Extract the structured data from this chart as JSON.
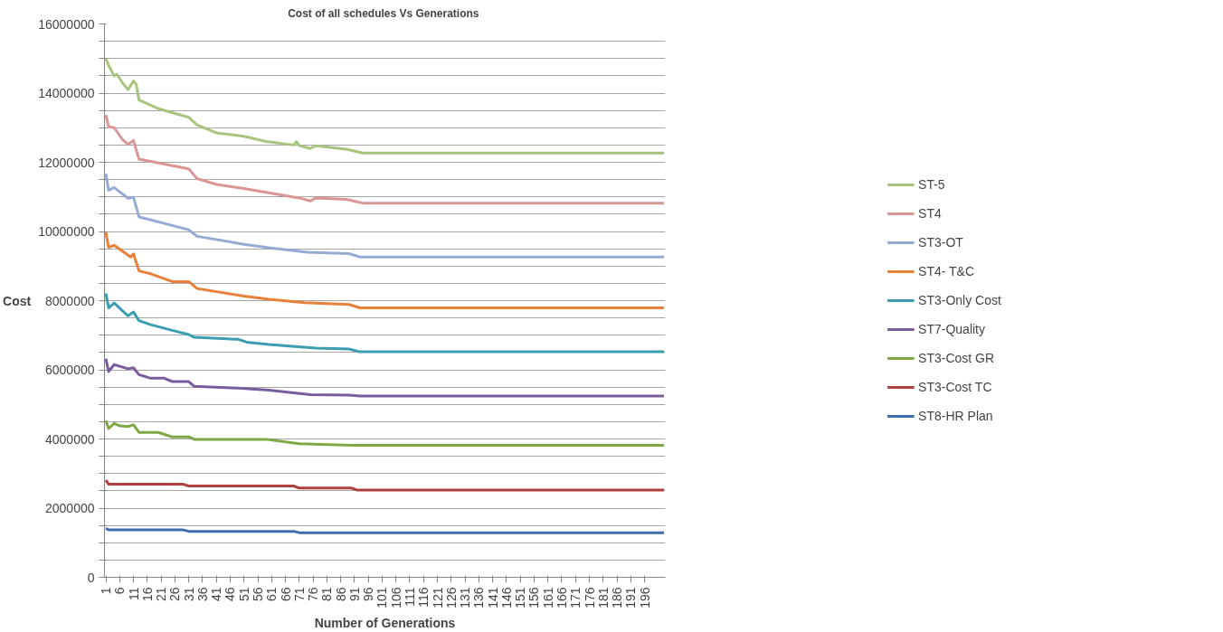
{
  "chart_data": {
    "type": "line",
    "title": "Cost of all schedules  Vs Generations",
    "xlabel": "Number of Generations",
    "ylabel": "Cost",
    "xlim": [
      0.5,
      203.5
    ],
    "xticks": [
      1,
      6,
      11,
      16,
      21,
      26,
      31,
      36,
      41,
      46,
      51,
      56,
      61,
      66,
      71,
      76,
      81,
      86,
      91,
      96,
      101,
      106,
      111,
      116,
      121,
      126,
      131,
      136,
      141,
      146,
      151,
      156,
      161,
      166,
      171,
      176,
      181,
      186,
      191,
      196
    ],
    "ylim": [
      0,
      16000000
    ],
    "yticks": [
      0,
      {
        "value": 500000,
        "label": null
      },
      {
        "value": 1000000,
        "label": null
      },
      {
        "value": 1500000,
        "label": null
      },
      2000000,
      {
        "value": 2500000,
        "label": null
      },
      {
        "value": 3000000,
        "label": null
      },
      {
        "value": 3500000,
        "label": null
      },
      4000000,
      {
        "value": 4500000,
        "label": null
      },
      {
        "value": 5000000,
        "label": null
      },
      {
        "value": 5500000,
        "label": null
      },
      6000000,
      {
        "value": 6500000,
        "label": null
      },
      {
        "value": 7000000,
        "label": null
      },
      {
        "value": 7500000,
        "label": null
      },
      8000000,
      {
        "value": 8500000,
        "label": null
      },
      {
        "value": 9000000,
        "label": null
      },
      {
        "value": 9500000,
        "label": null
      },
      10000000,
      {
        "value": 10500000,
        "label": null
      },
      {
        "value": 11000000,
        "label": null
      },
      {
        "value": 11500000,
        "label": null
      },
      12000000,
      {
        "value": 12500000,
        "label": null
      },
      {
        "value": 13000000,
        "label": null
      },
      {
        "value": 13500000,
        "label": null
      },
      14000000,
      {
        "value": 14500000,
        "label": null
      },
      {
        "value": 15000000,
        "label": null
      },
      {
        "value": 15500000,
        "label": null
      },
      16000000
    ],
    "grid": "y",
    "legend": "right",
    "series": [
      {
        "name": "ST-5",
        "color": "#a9c47f",
        "x": [
          1,
          2,
          4,
          5,
          7,
          9,
          11,
          12,
          13,
          20,
          31,
          34,
          41,
          51,
          59,
          69,
          70,
          71,
          75,
          77,
          88,
          94,
          203
        ],
        "values": [
          15000000,
          14800000,
          14500000,
          14550000,
          14300000,
          14100000,
          14350000,
          14250000,
          13800000,
          13550000,
          13300000,
          13080000,
          12850000,
          12750000,
          12600000,
          12500000,
          12600000,
          12480000,
          12400000,
          12480000,
          12380000,
          12270000,
          12270000
        ]
      },
      {
        "name": "ST4",
        "color": "#d99694",
        "x": [
          1,
          2,
          4,
          7,
          9,
          11,
          13,
          31,
          34,
          41,
          51,
          59,
          71,
          75,
          77,
          88,
          94,
          203
        ],
        "values": [
          13370000,
          13030000,
          13000000,
          12660000,
          12520000,
          12630000,
          12090000,
          11810000,
          11530000,
          11360000,
          11240000,
          11130000,
          10970000,
          10880000,
          10970000,
          10930000,
          10820000,
          10820000
        ]
      },
      {
        "name": "ST3-OT",
        "color": "#95abd6",
        "x": [
          1,
          2,
          4,
          9,
          11,
          13,
          17,
          31,
          34,
          51,
          60,
          74,
          89,
          93,
          203
        ],
        "values": [
          11670000,
          11190000,
          11270000,
          10960000,
          10990000,
          10420000,
          10340000,
          10050000,
          9860000,
          9630000,
          9530000,
          9400000,
          9360000,
          9260000,
          9260000
        ]
      },
      {
        "name": "ST4- T&C",
        "color": "#e8803a",
        "x": [
          1,
          2,
          4,
          10,
          11,
          13,
          17,
          25,
          31,
          34,
          51,
          60,
          73,
          89,
          93,
          203
        ],
        "values": [
          9970000,
          9540000,
          9600000,
          9260000,
          9350000,
          8860000,
          8780000,
          8550000,
          8550000,
          8350000,
          8130000,
          8040000,
          7940000,
          7890000,
          7790000,
          7790000
        ]
      },
      {
        "name": "ST3-Only Cost",
        "color": "#3a9db0",
        "x": [
          1,
          2,
          4,
          9,
          11,
          13,
          17,
          25,
          31,
          33,
          49,
          52,
          60,
          77,
          89,
          93,
          203
        ],
        "values": [
          8210000,
          7790000,
          7930000,
          7560000,
          7670000,
          7420000,
          7310000,
          7140000,
          7020000,
          6940000,
          6880000,
          6800000,
          6730000,
          6630000,
          6600000,
          6520000,
          6520000
        ]
      },
      {
        "name": "ST7-Quality",
        "color": "#7a5c9c",
        "x": [
          1,
          2,
          4,
          9,
          11,
          13,
          17,
          22,
          25,
          31,
          33,
          49,
          60,
          75,
          89,
          93,
          203
        ],
        "values": [
          6320000,
          5950000,
          6150000,
          6030000,
          6060000,
          5860000,
          5760000,
          5760000,
          5660000,
          5660000,
          5520000,
          5470000,
          5410000,
          5280000,
          5270000,
          5240000,
          5240000
        ]
      },
      {
        "name": "ST3-Cost GR",
        "color": "#7fa845",
        "x": [
          1,
          2,
          4,
          6,
          9,
          11,
          13,
          20,
          25,
          31,
          33,
          59,
          71,
          90,
          203
        ],
        "values": [
          4530000,
          4300000,
          4450000,
          4380000,
          4360000,
          4410000,
          4190000,
          4190000,
          4060000,
          4060000,
          3990000,
          3990000,
          3860000,
          3820000,
          3820000
        ]
      },
      {
        "name": "ST3-Cost TC",
        "color": "#b0403c",
        "x": [
          1,
          2,
          29,
          31,
          69,
          71,
          90,
          92,
          203
        ],
        "values": [
          2810000,
          2690000,
          2690000,
          2640000,
          2640000,
          2580000,
          2580000,
          2520000,
          2520000
        ]
      },
      {
        "name": "ST8-HR Plan",
        "color": "#3d6fae",
        "x": [
          1,
          2,
          29,
          31,
          69,
          71,
          203
        ],
        "values": [
          1420000,
          1370000,
          1370000,
          1330000,
          1330000,
          1290000,
          1290000
        ]
      }
    ]
  }
}
